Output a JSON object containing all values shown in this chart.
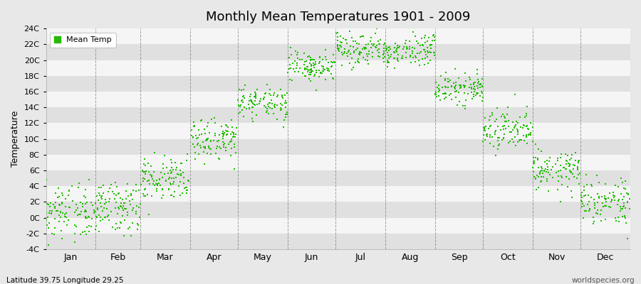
{
  "title": "Monthly Mean Temperatures 1901 - 2009",
  "ylabel": "Temperature",
  "subtitle_left": "Latitude 39.75 Longitude 29.25",
  "subtitle_right": "worldspecies.org",
  "legend_label": "Mean Temp",
  "dot_color": "#22bb00",
  "background_color": "#e8e8e8",
  "band_color_light": "#f5f5f5",
  "band_color_dark": "#e0e0e0",
  "grid_color": "#666666",
  "ylim": [
    -4,
    24
  ],
  "yticks": [
    -4,
    -2,
    0,
    2,
    4,
    6,
    8,
    10,
    12,
    14,
    16,
    18,
    20,
    22,
    24
  ],
  "ytick_labels": [
    "-4C",
    "-2C",
    "0C",
    "2C",
    "4C",
    "6C",
    "8C",
    "10C",
    "12C",
    "14C",
    "16C",
    "18C",
    "20C",
    "22C",
    "24C"
  ],
  "months": [
    "Jan",
    "Feb",
    "Mar",
    "Apr",
    "May",
    "Jun",
    "Jul",
    "Aug",
    "Sep",
    "Oct",
    "Nov",
    "Dec"
  ],
  "monthly_means": [
    0.5,
    1.5,
    5.0,
    10.0,
    14.5,
    19.0,
    21.5,
    21.0,
    16.5,
    11.0,
    6.0,
    2.0
  ],
  "monthly_stds": [
    1.8,
    1.7,
    1.4,
    1.3,
    1.1,
    1.0,
    1.0,
    1.0,
    1.1,
    1.2,
    1.3,
    1.6
  ],
  "n_years": 109,
  "seed": 42,
  "days_in_months": [
    31,
    28,
    31,
    30,
    31,
    30,
    31,
    31,
    30,
    31,
    30,
    31
  ]
}
